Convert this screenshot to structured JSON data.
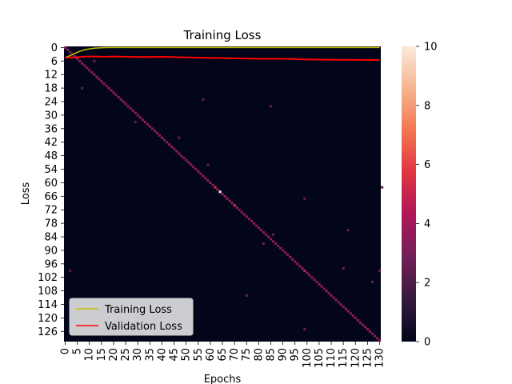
{
  "chart_data": {
    "type": "heatmap",
    "title": "Training Loss",
    "xlabel": "Epochs",
    "ylabel": "Loss",
    "matrix_size": 131,
    "x_ticks": [
      "0",
      "5",
      "10",
      "15",
      "20",
      "25",
      "30",
      "35",
      "40",
      "45",
      "50",
      "55",
      "60",
      "65",
      "70",
      "75",
      "80",
      "85",
      "90",
      "95",
      "100",
      "105",
      "110",
      "115",
      "120",
      "125",
      "130"
    ],
    "y_ticks": [
      "0",
      "6",
      "12",
      "18",
      "24",
      "30",
      "36",
      "42",
      "48",
      "54",
      "60",
      "66",
      "72",
      "78",
      "84",
      "90",
      "96",
      "102",
      "108",
      "114",
      "120",
      "126"
    ],
    "colorbar": {
      "min": 0,
      "max": 10,
      "ticks": [
        "0",
        "2",
        "4",
        "6",
        "8",
        "10"
      ],
      "colors": [
        "#03051a",
        "#36193e",
        "#701f57",
        "#ad1759",
        "#e13342",
        "#f37651",
        "#f6b48f",
        "#faebdd"
      ]
    },
    "diagonal": {
      "typical_value": 3.5,
      "bright_points": [
        {
          "index": 64,
          "value": 10
        },
        {
          "index": 62,
          "value": 5.5
        },
        {
          "index": 70,
          "value": 5.5
        },
        {
          "index": 99,
          "value": 5
        }
      ]
    },
    "scattered_points": [
      {
        "row": 18,
        "col": 7,
        "value": 2.5
      },
      {
        "row": 23,
        "col": 57,
        "value": 2.5
      },
      {
        "row": 26,
        "col": 85,
        "value": 2.5
      },
      {
        "row": 33,
        "col": 29,
        "value": 2.5
      },
      {
        "row": 40,
        "col": 47,
        "value": 2.5
      },
      {
        "row": 52,
        "col": 59,
        "value": 2.5
      },
      {
        "row": 62,
        "col": 131,
        "value": 2.5
      },
      {
        "row": 67,
        "col": 99,
        "value": 2.5
      },
      {
        "row": 81,
        "col": 117,
        "value": 2.5
      },
      {
        "row": 83,
        "col": 86,
        "value": 2.5
      },
      {
        "row": 87,
        "col": 82,
        "value": 2.5
      },
      {
        "row": 98,
        "col": 115,
        "value": 2.5
      },
      {
        "row": 99,
        "col": 2,
        "value": 2.5
      },
      {
        "row": 99,
        "col": 130,
        "value": 2.5
      },
      {
        "row": 104,
        "col": 127,
        "value": 2.5
      },
      {
        "row": 110,
        "col": 75,
        "value": 2.5
      },
      {
        "row": 125,
        "col": 99,
        "value": 2.5
      },
      {
        "row": 6,
        "col": 12,
        "value": 2.5
      }
    ],
    "series": [
      {
        "name": "Training Loss",
        "color": "#bfbf00",
        "x": [
          0,
          2,
          4,
          6,
          8,
          10,
          12,
          14,
          16,
          20,
          30,
          50,
          80,
          110,
          130
        ],
        "y": [
          4.5,
          3.6,
          2.6,
          1.7,
          1.0,
          0.6,
          0.3,
          0.15,
          0.05,
          0,
          0,
          0,
          0,
          0,
          0
        ]
      },
      {
        "name": "Validation Loss",
        "color": "#ff0000",
        "x": [
          0,
          3,
          6,
          9,
          12,
          16,
          20,
          30,
          40,
          50,
          60,
          70,
          80,
          90,
          100,
          110,
          120,
          130
        ],
        "y": [
          4.6,
          4.4,
          4.2,
          4.0,
          4.0,
          4.1,
          4.0,
          4.2,
          4.1,
          4.4,
          4.6,
          4.8,
          5.0,
          5.0,
          5.3,
          5.4,
          5.5,
          5.5
        ]
      }
    ],
    "legend_position": "lower-left"
  }
}
